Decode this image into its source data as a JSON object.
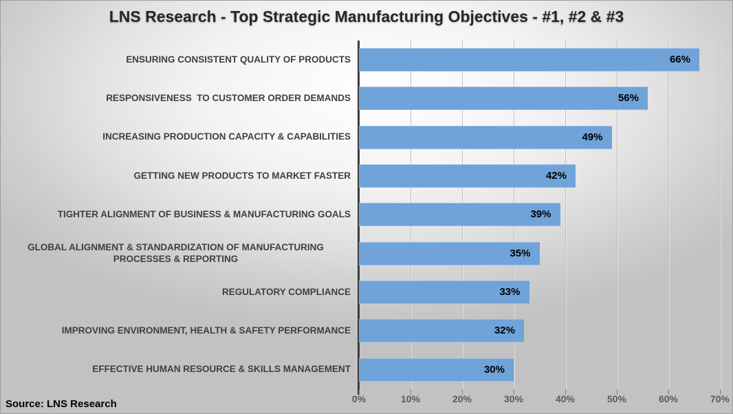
{
  "source_label": "Source: LNS Research",
  "chart_data": {
    "type": "bar",
    "orientation": "horizontal",
    "title": "LNS Research - Top Strategic Manufacturing Objectives - #1, #2 & #3",
    "categories": [
      "ENSURING CONSISTENT QUALITY OF PRODUCTS",
      "RESPONSIVENESS  TO CUSTOMER ORDER DEMANDS",
      "INCREASING PRODUCTION CAPACITY & CAPABILITIES",
      "GETTING NEW PRODUCTS TO MARKET FASTER",
      "TIGHTER ALIGNMENT OF BUSINESS & MANUFACTURING GOALS",
      "GLOBAL ALIGNMENT & STANDARDIZATION OF MANUFACTURING PROCESSES & REPORTING",
      "REGULATORY COMPLIANCE",
      "IMPROVING ENVIRONMENT, HEALTH & SAFETY PERFORMANCE",
      "EFFECTIVE HUMAN RESOURCE & SKILLS MANAGEMENT"
    ],
    "values": [
      66,
      56,
      49,
      42,
      39,
      35,
      33,
      32,
      30
    ],
    "value_labels": [
      "66%",
      "56%",
      "49%",
      "42%",
      "39%",
      "35%",
      "33%",
      "32%",
      "30%"
    ],
    "x_ticks": [
      "0%",
      "10%",
      "20%",
      "30%",
      "40%",
      "50%",
      "60%",
      "70%"
    ],
    "xlim": [
      0,
      70
    ],
    "grid": true,
    "legend": "none",
    "bar_color": "#6fa3d9",
    "source": "Source: LNS Research"
  }
}
